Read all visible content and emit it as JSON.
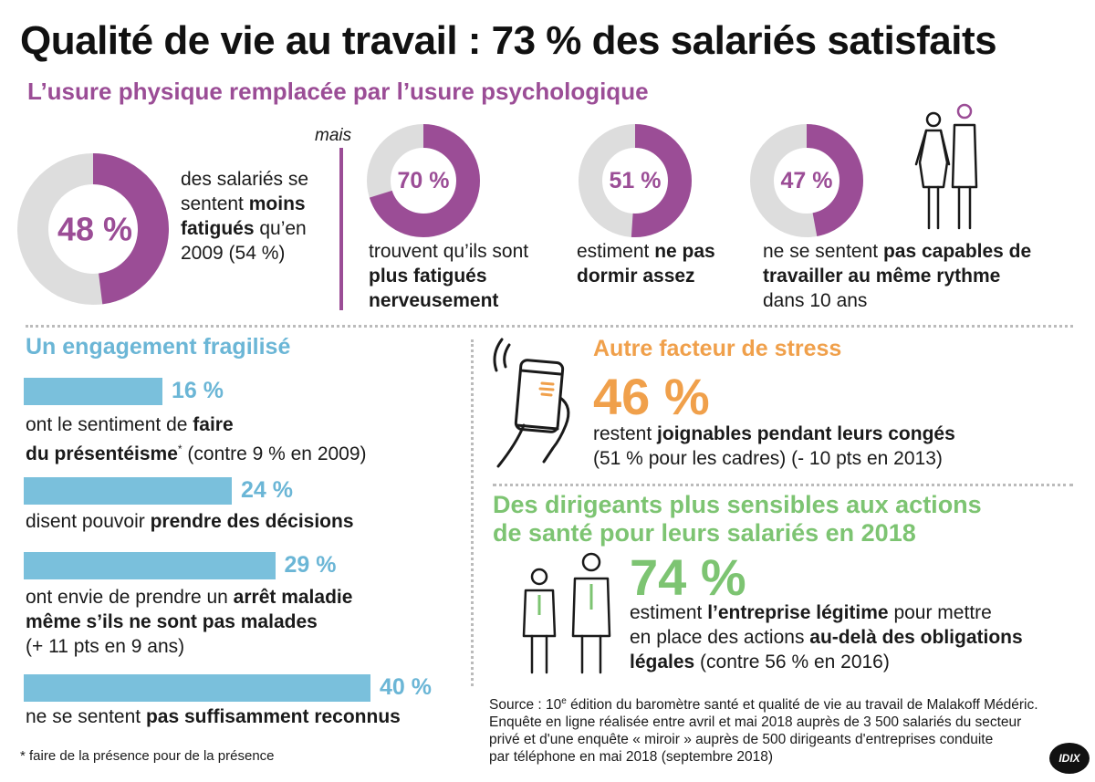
{
  "title": "Qualité de vie au travail : 73 % des salariés satisfaits",
  "subtitle": "L’usure physique remplacée par l’usure psychologique",
  "mais": "mais",
  "colors": {
    "purple": "#9b4d96",
    "grey": "#dddddd",
    "blue": "#7ac0dc",
    "orange": "#f0a04b",
    "green": "#7dc472"
  },
  "donuts": [
    {
      "value": 48,
      "label": "48 %",
      "text_pre": "des salariés se sentent ",
      "text_bold": "moins fatigués",
      "text_post": " qu’en 2009 (54 %)"
    },
    {
      "value": 70,
      "label": "70 %",
      "text_pre": "trouvent qu’ils sont ",
      "text_bold": "plus fatigués nerveusement",
      "text_post": ""
    },
    {
      "value": 51,
      "label": "51 %",
      "text_pre": "estiment ",
      "text_bold": "ne pas dormir assez",
      "text_post": ""
    },
    {
      "value": 47,
      "label": "47 %",
      "text_pre": "ne se sentent ",
      "text_bold": "pas capables de travailler au même rythme",
      "text_post": " dans 10 ans"
    }
  ],
  "engagement": {
    "title": "Un engagement fragilisé",
    "items": [
      {
        "value": 16,
        "label": "16 %",
        "line1_pre": "ont le sentiment de ",
        "line1_bold": "faire",
        "line2_bold": "du présentéisme",
        "line2_sup": "*",
        "line2_post": " (contre 9 % en 2009)"
      },
      {
        "value": 24,
        "label": "24 %",
        "line1_pre": "disent pouvoir ",
        "line1_bold": "prendre des décisions"
      },
      {
        "value": 29,
        "label": "29 %",
        "line1_pre": "ont envie de prendre un ",
        "line1_bold": "arrêt maladie",
        "line2_bold": "même s’ils ne sont pas malades",
        "line3": "(+ 11 pts en 9 ans)"
      },
      {
        "value": 40,
        "label": "40 %",
        "line1_pre": "ne se sentent ",
        "line1_bold": "pas suffisamment reconnus"
      }
    ],
    "footnote": "* faire de la présence pour de la présence"
  },
  "stress": {
    "title": "Autre facteur de stress",
    "value": "46 %",
    "line1_pre": "restent ",
    "line1_bold": "joignables pendant leurs congés",
    "line2": "(51 % pour les cadres) (- 10 pts en 2013)"
  },
  "dirigeants": {
    "title_line1": "Des dirigeants plus sensibles aux actions",
    "title_line2": "de santé pour leurs salariés en 2018",
    "value": "74 %",
    "line1_pre": "estiment ",
    "line1_bold": "l’entreprise légitime",
    "line1_post": " pour mettre",
    "line2_pre": "en place des actions ",
    "line2_bold": "au-delà des obligations",
    "line3_bold": "légales",
    "line3_post": " (contre 56 % en 2016)"
  },
  "source": {
    "l1_pre": "Source : 10",
    "l1_sup": "e",
    "l1_post": " édition du baromètre santé et qualité de vie au travail de Malakoff Médéric.",
    "l2": "Enquête en ligne réalisée entre avril et mai 2018 auprès de 3 500 salariés du secteur",
    "l3": "privé et d'une enquête « miroir » auprès de 500 dirigeants d'entreprises conduite",
    "l4": "par téléphone en mai 2018 (septembre 2018)"
  },
  "logo": "IDIX",
  "chart_data": [
    {
      "type": "pie",
      "title": "L’usure physique remplacée par l’usure psychologique",
      "series": [
        {
          "name": "moins fatigués",
          "values": [
            48
          ]
        },
        {
          "name": "plus fatigués nerveusement",
          "values": [
            70
          ]
        },
        {
          "name": "ne pas dormir assez",
          "values": [
            51
          ]
        },
        {
          "name": "pas capables de travailler au même rythme",
          "values": [
            47
          ]
        }
      ]
    },
    {
      "type": "bar",
      "title": "Un engagement fragilisé",
      "categories": [
        "faire du présentéisme",
        "prendre des décisions",
        "arrêt maladie",
        "pas suffisamment reconnus"
      ],
      "values": [
        16,
        24,
        29,
        40
      ]
    }
  ]
}
